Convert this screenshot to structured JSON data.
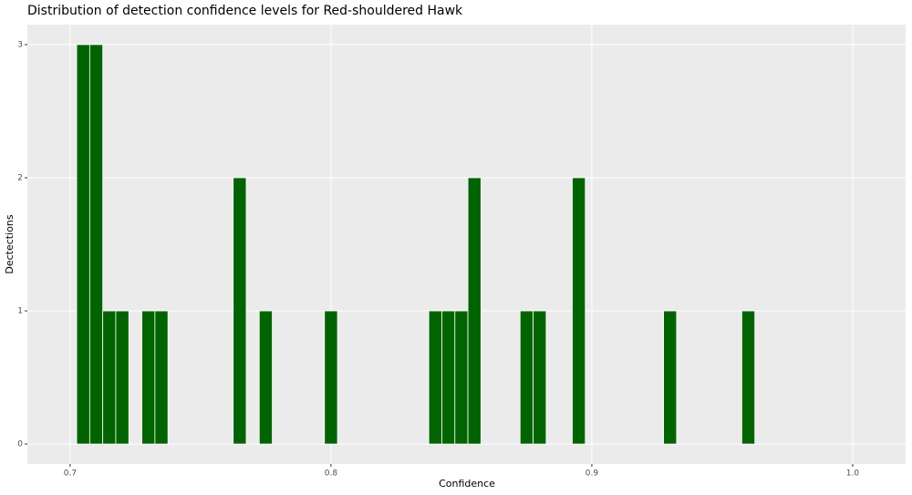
{
  "chart_data": {
    "type": "histogram",
    "title": "Distribution of detection confidence levels for Red-shouldered Hawk",
    "x_label": "Confidence",
    "y_label": "Dectections",
    "bins": [
      0.7025,
      0.7075,
      0.7125,
      0.7175,
      0.7225,
      0.7275,
      0.7325,
      0.7375,
      0.7425,
      0.7475,
      0.7525,
      0.7575,
      0.7625,
      0.7675,
      0.7725,
      0.7775,
      0.7825,
      0.7875,
      0.7925,
      0.7975,
      0.8025,
      0.8075,
      0.8125,
      0.8175,
      0.8225,
      0.8275,
      0.8325,
      0.8375,
      0.8425,
      0.8475,
      0.8525,
      0.8575,
      0.8625,
      0.8675,
      0.8725,
      0.8775,
      0.8825,
      0.8875,
      0.8925,
      0.8975,
      0.9025,
      0.9075,
      0.9125,
      0.9175,
      0.9225,
      0.9275,
      0.9325,
      0.9375,
      0.9425,
      0.9475,
      0.9525,
      0.9575,
      0.9625
    ],
    "values": [
      3,
      3,
      1,
      1,
      0,
      1,
      1,
      0,
      0,
      0,
      0,
      0,
      2,
      0,
      1,
      0,
      0,
      0,
      0,
      1,
      0,
      0,
      0,
      0,
      0,
      0,
      0,
      1,
      1,
      1,
      2,
      0,
      0,
      0,
      1,
      1,
      0,
      0,
      2,
      0,
      0,
      0,
      0,
      0,
      0,
      1,
      0,
      0,
      0,
      0,
      0,
      1
    ],
    "color": "#006400",
    "xlim": [
      0.6836,
      1.0203
    ],
    "xticks": [
      0.7,
      0.8,
      0.9,
      {
        "value": 1,
        "label": "1.0"
      }
    ],
    "ylim": [
      -0.15,
      3.15
    ],
    "yticks": [
      0,
      1,
      2,
      3
    ],
    "grid": true
  }
}
